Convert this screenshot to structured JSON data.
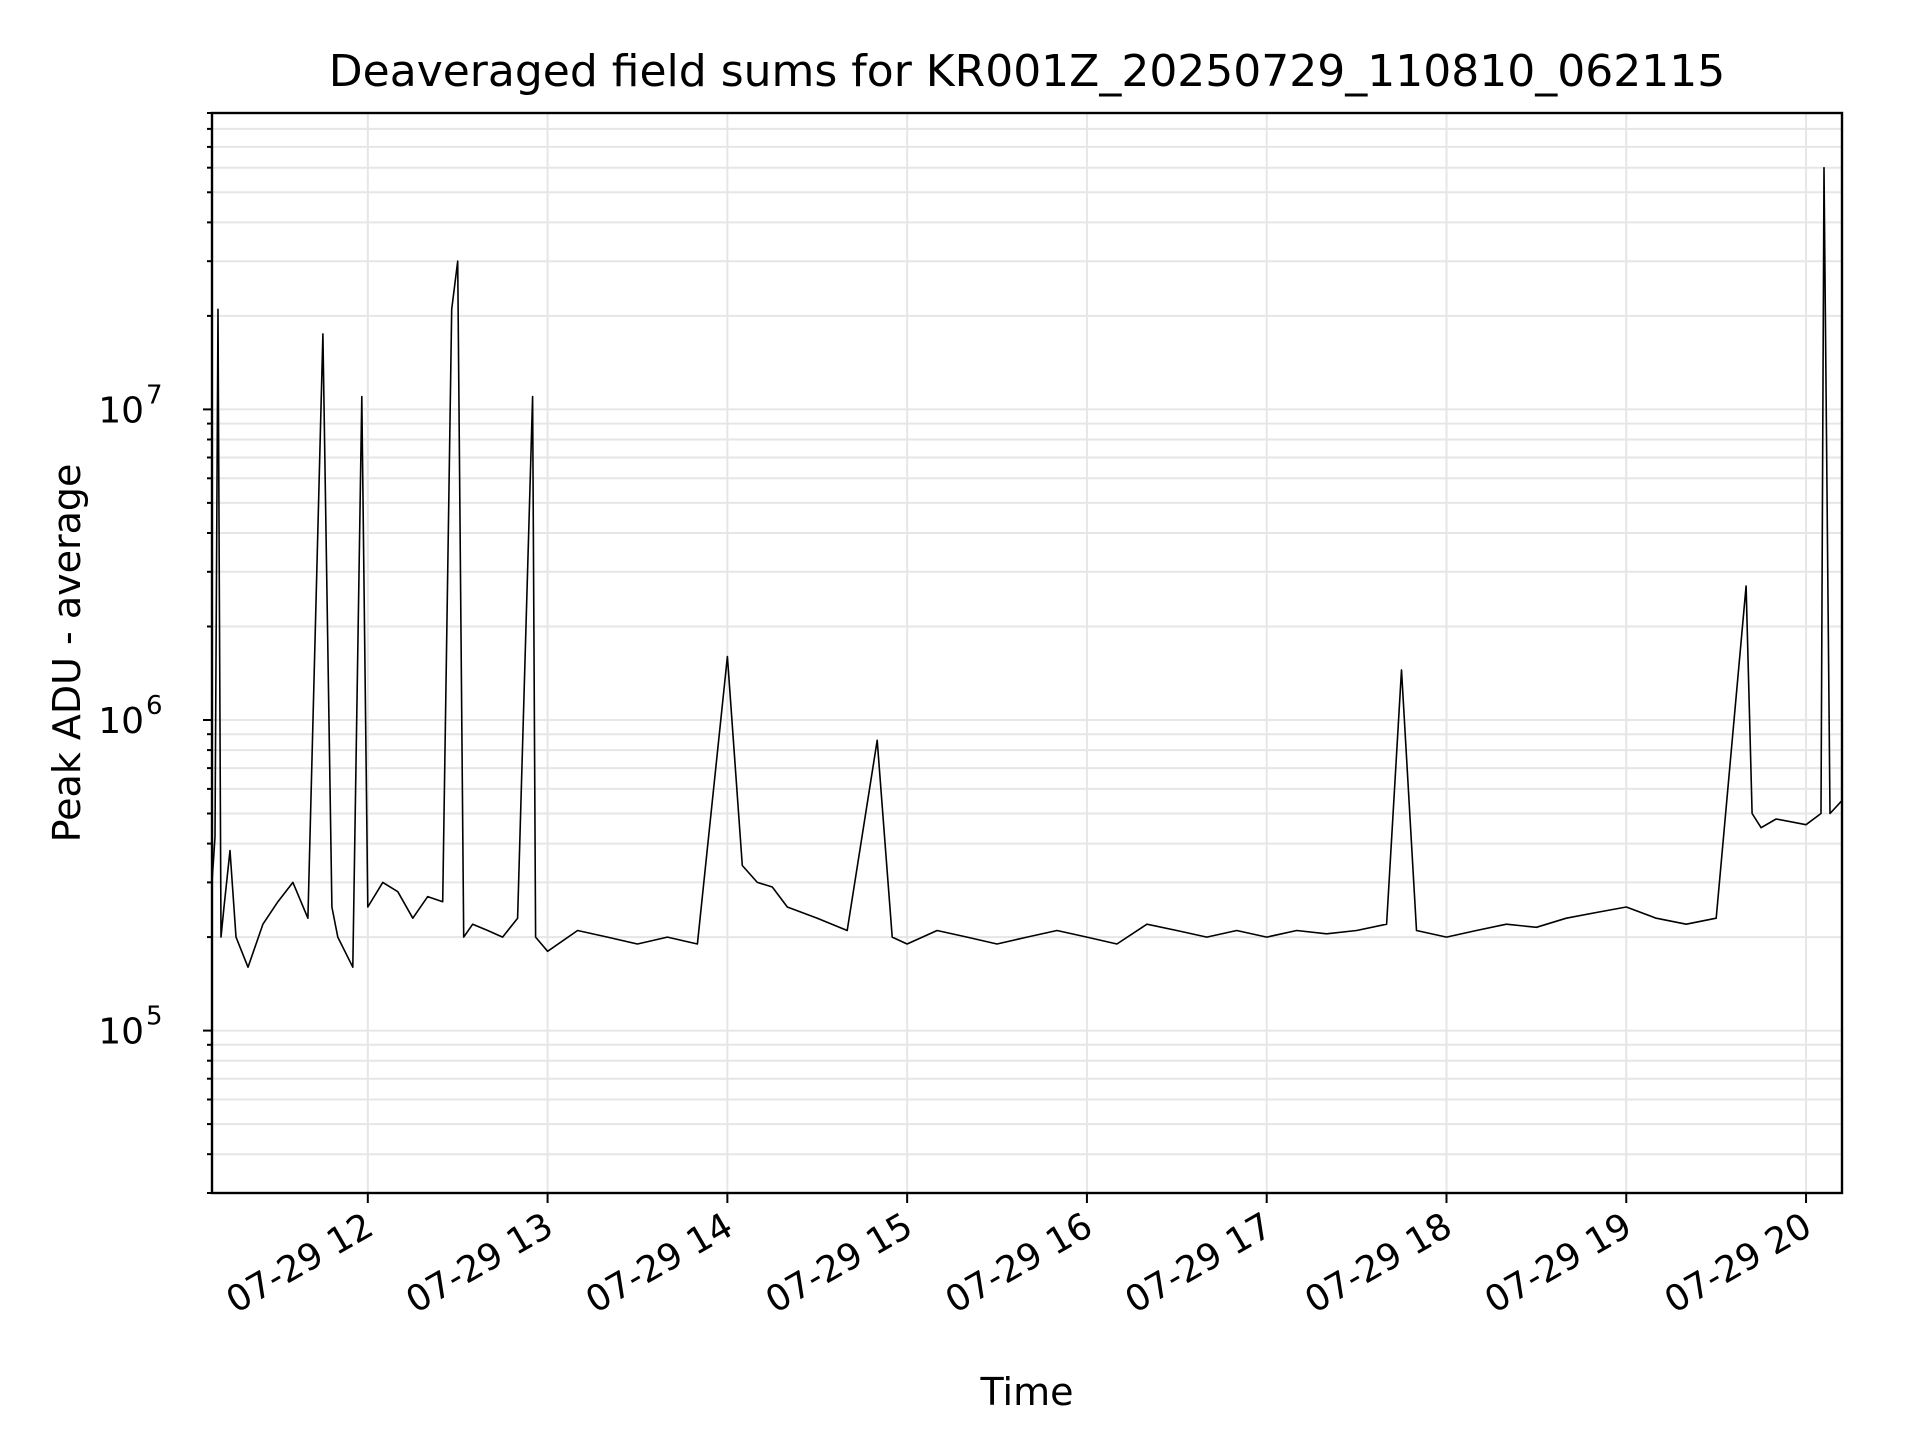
{
  "chart_data": {
    "type": "line",
    "title": "Deaveraged field sums for KR001Z_20250729_110810_062115",
    "xlabel": "Time",
    "ylabel": "Peak ADU - average",
    "yscale": "log",
    "ylim": [
      30000,
      90000000
    ],
    "xlim": [
      "07-29 11:08",
      "07-29 20:12"
    ],
    "grid": true,
    "line_color": "#000000",
    "grid_color": "#e6e6e6",
    "x_ticks": [
      {
        "value": "07-29 12:00",
        "label": "07-29 12"
      },
      {
        "value": "07-29 13:00",
        "label": "07-29 13"
      },
      {
        "value": "07-29 14:00",
        "label": "07-29 14"
      },
      {
        "value": "07-29 15:00",
        "label": "07-29 15"
      },
      {
        "value": "07-29 16:00",
        "label": "07-29 16"
      },
      {
        "value": "07-29 17:00",
        "label": "07-29 17"
      },
      {
        "value": "07-29 18:00",
        "label": "07-29 18"
      },
      {
        "value": "07-29 19:00",
        "label": "07-29 19"
      },
      {
        "value": "07-29 20:00",
        "label": "07-29 20"
      }
    ],
    "y_ticks": [
      {
        "value": 100000,
        "base": "10",
        "exp": "5"
      },
      {
        "value": 1000000,
        "base": "10",
        "exp": "6"
      },
      {
        "value": 10000000,
        "base": "10",
        "exp": "7"
      }
    ],
    "series": [
      {
        "x": [
          "07-29 11:08",
          "07-29 11:09",
          "07-29 11:10",
          "07-29 11:11",
          "07-29 11:12",
          "07-29 11:14",
          "07-29 11:16",
          "07-29 11:20",
          "07-29 11:25",
          "07-29 11:30",
          "07-29 11:35",
          "07-29 11:40",
          "07-29 11:45",
          "07-29 11:48",
          "07-29 11:50",
          "07-29 11:55",
          "07-29 11:58",
          "07-29 12:00",
          "07-29 12:05",
          "07-29 12:10",
          "07-29 12:15",
          "07-29 12:20",
          "07-29 12:25",
          "07-29 12:28",
          "07-29 12:30",
          "07-29 12:32",
          "07-29 12:35",
          "07-29 12:40",
          "07-29 12:45",
          "07-29 12:50",
          "07-29 12:55",
          "07-29 12:56",
          "07-29 13:00",
          "07-29 13:10",
          "07-29 13:20",
          "07-29 13:30",
          "07-29 13:40",
          "07-29 13:50",
          "07-29 14:00",
          "07-29 14:05",
          "07-29 14:10",
          "07-29 14:15",
          "07-29 14:20",
          "07-29 14:30",
          "07-29 14:40",
          "07-29 14:50",
          "07-29 14:55",
          "07-29 15:00",
          "07-29 15:10",
          "07-29 15:20",
          "07-29 15:30",
          "07-29 15:40",
          "07-29 15:50",
          "07-29 16:00",
          "07-29 16:10",
          "07-29 16:20",
          "07-29 16:30",
          "07-29 16:40",
          "07-29 16:50",
          "07-29 17:00",
          "07-29 17:10",
          "07-29 17:20",
          "07-29 17:30",
          "07-29 17:40",
          "07-29 17:45",
          "07-29 17:50",
          "07-29 18:00",
          "07-29 18:10",
          "07-29 18:20",
          "07-29 18:30",
          "07-29 18:40",
          "07-29 18:50",
          "07-29 19:00",
          "07-29 19:10",
          "07-29 19:20",
          "07-29 19:30",
          "07-29 19:40",
          "07-29 19:42",
          "07-29 19:45",
          "07-29 19:50",
          "07-29 20:00",
          "07-29 20:05",
          "07-29 20:06",
          "07-29 20:08",
          "07-29 20:12"
        ],
        "y": [
          300000,
          420000,
          21000000,
          200000,
          250000,
          380000,
          200000,
          160000,
          220000,
          260000,
          300000,
          230000,
          17500000,
          250000,
          200000,
          160000,
          11000000,
          250000,
          300000,
          280000,
          230000,
          270000,
          260000,
          21000000,
          30000000,
          200000,
          220000,
          210000,
          200000,
          230000,
          11000000,
          200000,
          180000,
          210000,
          200000,
          190000,
          200000,
          190000,
          1600000,
          340000,
          300000,
          290000,
          250000,
          230000,
          210000,
          860000,
          200000,
          190000,
          210000,
          200000,
          190000,
          200000,
          210000,
          200000,
          190000,
          220000,
          210000,
          200000,
          210000,
          200000,
          210000,
          205000,
          210000,
          220000,
          1450000,
          210000,
          200000,
          210000,
          220000,
          215000,
          230000,
          240000,
          250000,
          230000,
          220000,
          230000,
          2700000,
          500000,
          450000,
          480000,
          460000,
          500000,
          60000000,
          500000,
          550000
        ]
      }
    ]
  }
}
